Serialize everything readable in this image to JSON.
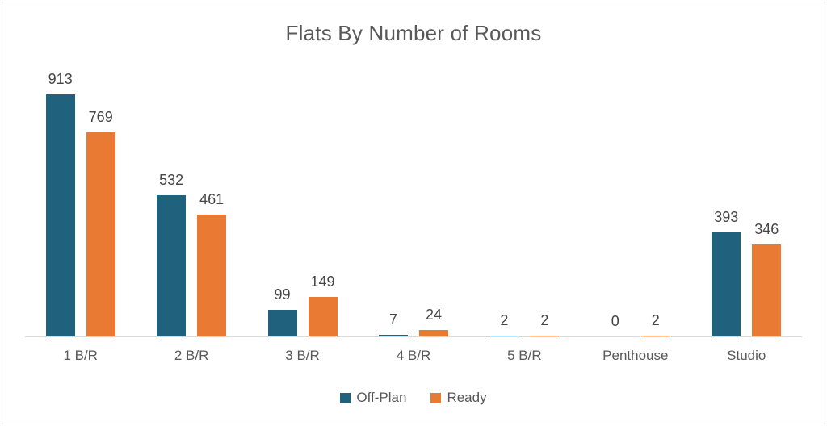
{
  "chart_data": {
    "type": "bar",
    "title": "Flats By Number of Rooms",
    "categories": [
      "1 B/R",
      "2 B/R",
      "3 B/R",
      "4 B/R",
      "5 B/R",
      "Penthouse",
      "Studio"
    ],
    "series": [
      {
        "name": "Off-Plan",
        "color": "#20617E",
        "values": [
          913,
          532,
          99,
          7,
          2,
          0,
          393
        ]
      },
      {
        "name": "Ready",
        "color": "#E87A33",
        "values": [
          769,
          461,
          149,
          24,
          2,
          2,
          346
        ]
      }
    ],
    "ylim": [
      0,
      960
    ],
    "grid": false,
    "value_labels": true,
    "legend_position": "bottom",
    "colors": {
      "frame_border": "#d9d9d9",
      "axis_line": "#d9d9d9",
      "title_text": "#595959",
      "value_label_text": "#464646",
      "axis_label_text": "#595959",
      "legend_text": "#595959"
    }
  }
}
